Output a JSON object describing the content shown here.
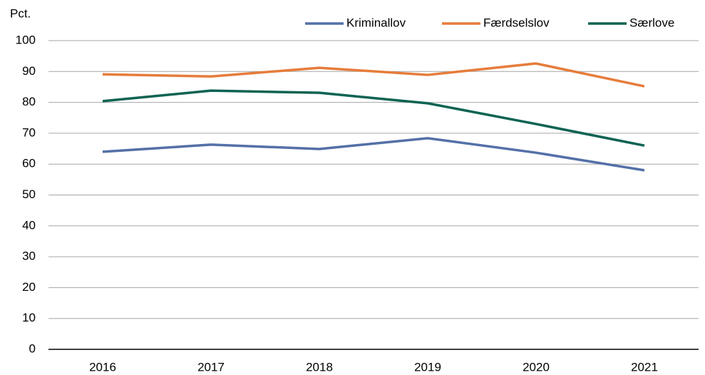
{
  "chart_data": {
    "type": "line",
    "y_label": "Pct.",
    "categories": [
      "2016",
      "2017",
      "2018",
      "2019",
      "2020",
      "2021"
    ],
    "series": [
      {
        "name": "Kriminallov",
        "color": "#5470a8",
        "values": [
          64.0,
          66.3,
          64.9,
          68.4,
          63.7,
          58.0
        ]
      },
      {
        "name": "Færdselslov",
        "color": "#e67c3b",
        "values": [
          89.1,
          88.4,
          91.2,
          88.9,
          92.6,
          85.2
        ]
      },
      {
        "name": "Særlove",
        "color": "#0e6352",
        "values": [
          80.4,
          83.8,
          83.1,
          79.7,
          73.0,
          66.0
        ]
      }
    ],
    "ylim": [
      0,
      100
    ],
    "yticks": [
      0,
      10,
      20,
      30,
      40,
      50,
      60,
      70,
      80,
      90,
      100
    ],
    "grid": true,
    "legend": "top"
  }
}
